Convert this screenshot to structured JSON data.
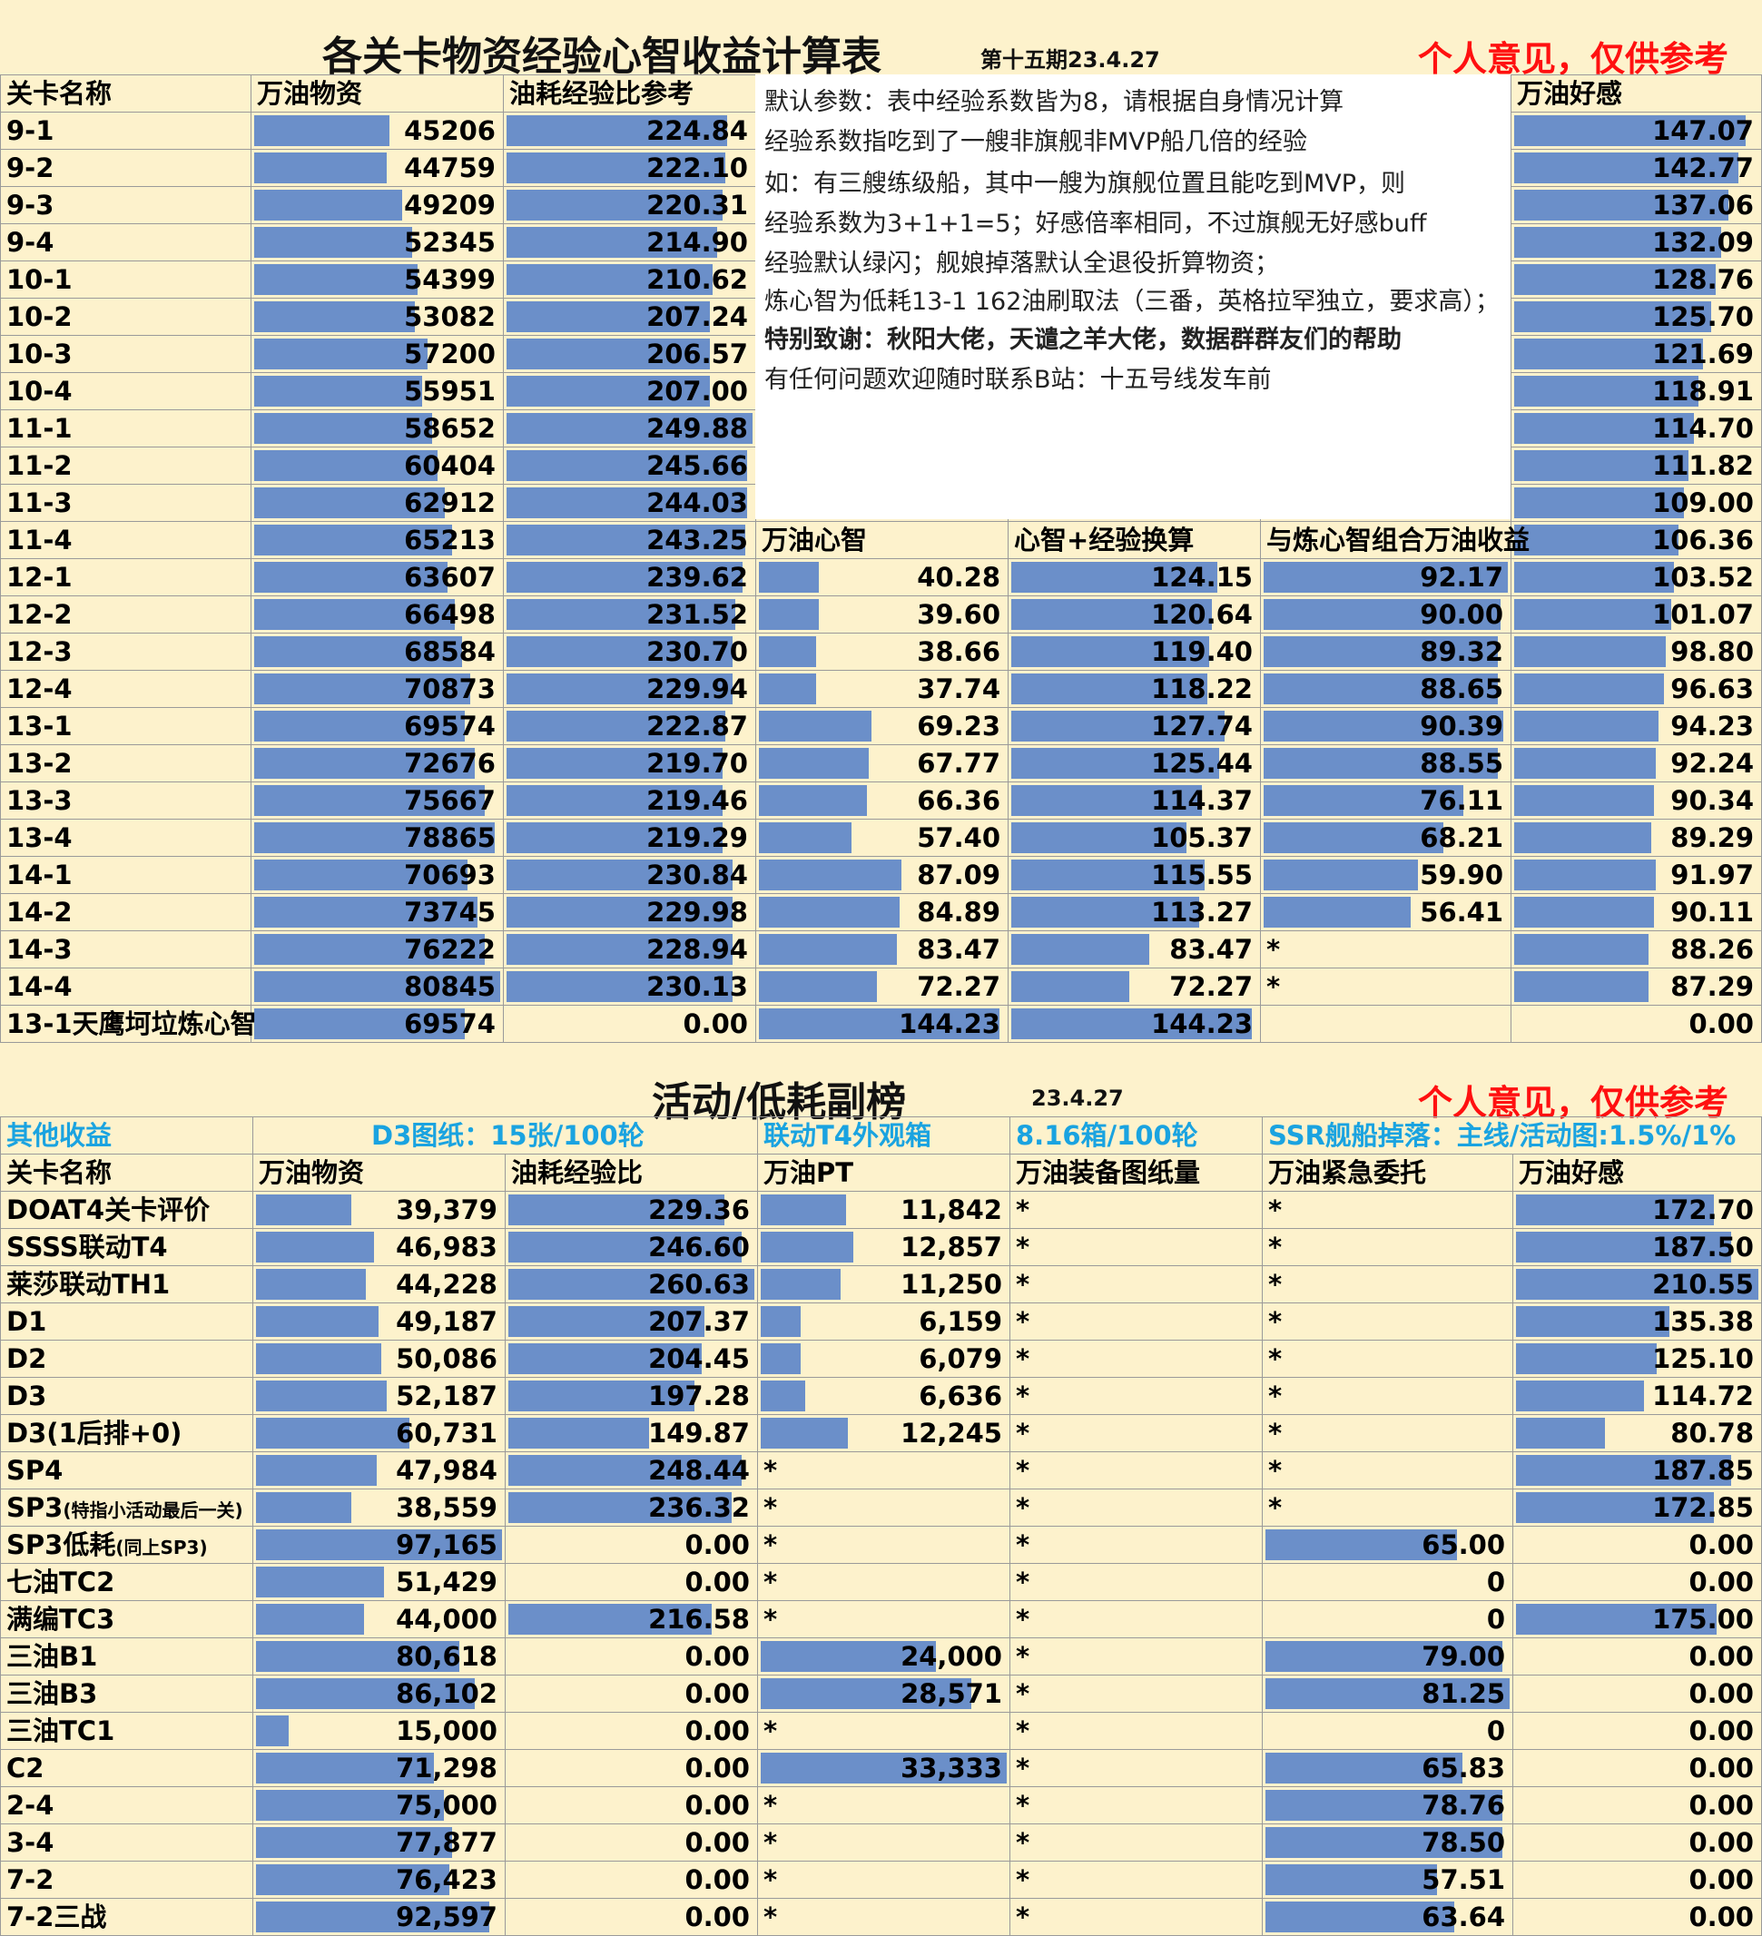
{
  "top": {
    "title": "各关卡物资经验心智收益计算表",
    "period": "第十五期23.4.27",
    "disclaimer": "个人意见，仅供参考",
    "headers": {
      "name": "关卡名称",
      "supply": "万油物资",
      "exp": "油耗经验比参考",
      "affinity": "万油好感",
      "mind": "万油心智",
      "mind_exp": "心智+经验换算",
      "combo": "与炼心智组合万油收益"
    },
    "rows": [
      {
        "name": "9-1",
        "supply": "45206",
        "exp": "224.84",
        "affinity": "147.07",
        "supply_pct": 0.56,
        "exp_pct": 0.9,
        "aff_pct": 0.95
      },
      {
        "name": "9-2",
        "supply": "44759",
        "exp": "222.10",
        "affinity": "142.77",
        "supply_pct": 0.55,
        "exp_pct": 0.89,
        "aff_pct": 0.92
      },
      {
        "name": "9-3",
        "supply": "49209",
        "exp": "220.31",
        "affinity": "137.06",
        "supply_pct": 0.61,
        "exp_pct": 0.88,
        "aff_pct": 0.88
      },
      {
        "name": "9-4",
        "supply": "52345",
        "exp": "214.90",
        "affinity": "132.09",
        "supply_pct": 0.65,
        "exp_pct": 0.86,
        "aff_pct": 0.85
      },
      {
        "name": "10-1",
        "supply": "54399",
        "exp": "210.62",
        "affinity": "128.76",
        "supply_pct": 0.67,
        "exp_pct": 0.84,
        "aff_pct": 0.83
      },
      {
        "name": "10-2",
        "supply": "53082",
        "exp": "207.24",
        "affinity": "125.70",
        "supply_pct": 0.66,
        "exp_pct": 0.83,
        "aff_pct": 0.81
      },
      {
        "name": "10-3",
        "supply": "57200",
        "exp": "206.57",
        "affinity": "121.69",
        "supply_pct": 0.71,
        "exp_pct": 0.83,
        "aff_pct": 0.78
      },
      {
        "name": "10-4",
        "supply": "55951",
        "exp": "207.00",
        "affinity": "118.91",
        "supply_pct": 0.69,
        "exp_pct": 0.83,
        "aff_pct": 0.76
      },
      {
        "name": "11-1",
        "supply": "58652",
        "exp": "249.88",
        "affinity": "114.70",
        "supply_pct": 0.73,
        "exp_pct": 1.0,
        "aff_pct": 0.74
      },
      {
        "name": "11-2",
        "supply": "60404",
        "exp": "245.66",
        "affinity": "111.82",
        "supply_pct": 0.75,
        "exp_pct": 0.98,
        "aff_pct": 0.72
      },
      {
        "name": "11-3",
        "supply": "62912",
        "exp": "244.03",
        "affinity": "109.00",
        "supply_pct": 0.78,
        "exp_pct": 0.98,
        "aff_pct": 0.7
      },
      {
        "name": "11-4",
        "supply": "65213",
        "exp": "243.25",
        "affinity": "106.36",
        "supply_pct": 0.81,
        "exp_pct": 0.97,
        "aff_pct": 0.68
      },
      {
        "name": "12-1",
        "supply": "63607",
        "exp": "239.62",
        "affinity": "103.52",
        "supply_pct": 0.79,
        "exp_pct": 0.96,
        "aff_pct": 0.66
      },
      {
        "name": "12-2",
        "supply": "66498",
        "exp": "231.52",
        "affinity": "101.07",
        "supply_pct": 0.82,
        "exp_pct": 0.93,
        "aff_pct": 0.65
      },
      {
        "name": "12-3",
        "supply": "68584",
        "exp": "230.70",
        "affinity": "98.80",
        "supply_pct": 0.85,
        "exp_pct": 0.92,
        "aff_pct": 0.63
      },
      {
        "name": "12-4",
        "supply": "70873",
        "exp": "229.94",
        "affinity": "96.63",
        "supply_pct": 0.88,
        "exp_pct": 0.92,
        "aff_pct": 0.62
      },
      {
        "name": "13-1",
        "supply": "69574",
        "exp": "222.87",
        "affinity": "94.23",
        "supply_pct": 0.86,
        "exp_pct": 0.89,
        "aff_pct": 0.6
      },
      {
        "name": "13-2",
        "supply": "72676",
        "exp": "219.70",
        "affinity": "92.24",
        "supply_pct": 0.9,
        "exp_pct": 0.88,
        "aff_pct": 0.59
      },
      {
        "name": "13-3",
        "supply": "75667",
        "exp": "219.46",
        "affinity": "90.34",
        "supply_pct": 0.94,
        "exp_pct": 0.88,
        "aff_pct": 0.58
      },
      {
        "name": "13-4",
        "supply": "78865",
        "exp": "219.29",
        "affinity": "89.29",
        "supply_pct": 0.98,
        "exp_pct": 0.88,
        "aff_pct": 0.57
      },
      {
        "name": "14-1",
        "supply": "70693",
        "exp": "230.84",
        "affinity": "91.97",
        "supply_pct": 0.87,
        "exp_pct": 0.92,
        "aff_pct": 0.59
      },
      {
        "name": "14-2",
        "supply": "73745",
        "exp": "229.98",
        "affinity": "90.11",
        "supply_pct": 0.91,
        "exp_pct": 0.92,
        "aff_pct": 0.58
      },
      {
        "name": "14-3",
        "supply": "76222",
        "exp": "228.94",
        "affinity": "88.26",
        "supply_pct": 0.94,
        "exp_pct": 0.92,
        "aff_pct": 0.56
      },
      {
        "name": "14-4",
        "supply": "80845",
        "exp": "230.13",
        "affinity": "87.29",
        "supply_pct": 1.0,
        "exp_pct": 0.92,
        "aff_pct": 0.56
      },
      {
        "name": "13-1天鹰坷垃炼心智",
        "supply": "69574",
        "exp": "0.00",
        "affinity": "0.00",
        "supply_pct": 0.86,
        "exp_pct": 0,
        "aff_pct": 0
      }
    ],
    "mind_rows": [
      {
        "mind": "40.28",
        "mind_exp": "124.15",
        "combo": "92.17",
        "m": 0.26,
        "me": 0.84,
        "c": 1.0
      },
      {
        "mind": "39.60",
        "mind_exp": "120.64",
        "combo": "90.00",
        "m": 0.26,
        "me": 0.82,
        "c": 0.97
      },
      {
        "mind": "38.66",
        "mind_exp": "119.40",
        "combo": "89.32",
        "m": 0.25,
        "me": 0.81,
        "c": 0.96
      },
      {
        "mind": "37.74",
        "mind_exp": "118.22",
        "combo": "88.65",
        "m": 0.25,
        "me": 0.8,
        "c": 0.96
      },
      {
        "mind": "69.23",
        "mind_exp": "127.74",
        "combo": "90.39",
        "m": 0.47,
        "me": 0.87,
        "c": 0.98
      },
      {
        "mind": "67.77",
        "mind_exp": "125.44",
        "combo": "88.55",
        "m": 0.46,
        "me": 0.85,
        "c": 0.96
      },
      {
        "mind": "66.36",
        "mind_exp": "114.37",
        "combo": "76.11",
        "m": 0.45,
        "me": 0.78,
        "c": 0.82
      },
      {
        "mind": "57.40",
        "mind_exp": "105.37",
        "combo": "68.21",
        "m": 0.39,
        "me": 0.72,
        "c": 0.74
      },
      {
        "mind": "87.09",
        "mind_exp": "115.55",
        "combo": "59.90",
        "m": 0.59,
        "me": 0.79,
        "c": 0.64
      },
      {
        "mind": "84.89",
        "mind_exp": "113.27",
        "combo": "56.41",
        "m": 0.58,
        "me": 0.77,
        "c": 0.61
      },
      {
        "mind": "83.47",
        "mind_exp": "83.47",
        "combo": "*",
        "m": 0.57,
        "me": 0.57,
        "c": 0
      },
      {
        "mind": "72.27",
        "mind_exp": "72.27",
        "combo": "*",
        "m": 0.49,
        "me": 0.49,
        "c": 0
      },
      {
        "mind": "144.23",
        "mind_exp": "144.23",
        "combo": "",
        "m": 0.98,
        "me": 0.98,
        "c": 0
      }
    ],
    "note": [
      "默认参数：表中经验系数皆为8，请根据自身情况计算",
      "经验系数指吃到了一艘非旗舰非MVP船几倍的经验",
      "如：有三艘练级船，其中一艘为旗舰位置且能吃到MVP，则",
      "经验系数为3+1+1=5；好感倍率相同，不过旗舰无好感buff",
      "经验默认绿闪；舰娘掉落默认全退役折算物资；",
      "炼心智为低耗13-1 162油刷取法（三番，英格拉罕独立，要求高）；",
      "特别致谢：秋阳大佬，天谴之羊大佬，数据群群友们的帮助",
      "有任何问题欢迎随时联系B站：十五号线发车前"
    ]
  },
  "bottom": {
    "title": "活动/低耗副榜",
    "date": "23.4.27",
    "disclaimer": "个人意见，仅供参考",
    "info": [
      "其他收益",
      "D3图纸：15张/100轮",
      "联动T4外观箱",
      "8.16箱/100轮",
      "SSR舰船掉落：主线/活动图:1.5%/1%"
    ],
    "headers": [
      "关卡名称",
      "万油物资",
      "油耗经验比",
      "万油PT",
      "万油装备图纸量",
      "万油紧急委托",
      "万油好感"
    ],
    "rows": [
      {
        "name": "DOAT4关卡评价",
        "small": "",
        "supply": "39,379",
        "exp": "229.36",
        "pt": "11,842",
        "blueprint": "*",
        "commission": "*",
        "affinity": "172.70",
        "s": 0.4,
        "e": 0.88,
        "p": 0.36,
        "c": 0,
        "a": 0.82
      },
      {
        "name": "SSSS联动T4",
        "small": "",
        "supply": "46,983",
        "exp": "246.60",
        "pt": "12,857",
        "blueprint": "*",
        "commission": "*",
        "affinity": "187.50",
        "s": 0.49,
        "e": 0.95,
        "p": 0.39,
        "c": 0,
        "a": 0.89
      },
      {
        "name": "莱莎联动TH1",
        "small": "",
        "supply": "44,228",
        "exp": "260.63",
        "pt": "11,250",
        "blueprint": "*",
        "commission": "*",
        "affinity": "210.55",
        "s": 0.46,
        "e": 1.0,
        "p": 0.34,
        "c": 0,
        "a": 1.0
      },
      {
        "name": "D1",
        "small": "",
        "supply": "49,187",
        "exp": "207.37",
        "pt": "6,159",
        "blueprint": "*",
        "commission": "*",
        "affinity": "135.38",
        "s": 0.51,
        "e": 0.8,
        "p": 0.18,
        "c": 0,
        "a": 0.64
      },
      {
        "name": "D2",
        "small": "",
        "supply": "50,086",
        "exp": "204.45",
        "pt": "6,079",
        "blueprint": "*",
        "commission": "*",
        "affinity": "125.10",
        "s": 0.52,
        "e": 0.79,
        "p": 0.18,
        "c": 0,
        "a": 0.59
      },
      {
        "name": "D3",
        "small": "",
        "supply": "52,187",
        "exp": "197.28",
        "pt": "6,636",
        "blueprint": "*",
        "commission": "*",
        "affinity": "114.72",
        "s": 0.54,
        "e": 0.76,
        "p": 0.2,
        "c": 0,
        "a": 0.54
      },
      {
        "name": "D3(1后排+0)",
        "small": "",
        "supply": "60,731",
        "exp": "149.87",
        "pt": "12,245",
        "blueprint": "*",
        "commission": "*",
        "affinity": "80.78",
        "s": 0.63,
        "e": 0.58,
        "p": 0.37,
        "c": 0,
        "a": 0.38
      },
      {
        "name": "SP4",
        "small": "",
        "supply": "47,984",
        "exp": "248.44",
        "pt": "*",
        "blueprint": "*",
        "commission": "*",
        "affinity": "187.85",
        "s": 0.5,
        "e": 0.95,
        "p": 0,
        "c": 0,
        "a": 0.89
      },
      {
        "name": "SP3",
        "small": "(特指小活动最后一关)",
        "supply": "38,559",
        "exp": "236.32",
        "pt": "*",
        "blueprint": "*",
        "commission": "*",
        "affinity": "172.85",
        "s": 0.4,
        "e": 0.91,
        "p": 0,
        "c": 0,
        "a": 0.82
      },
      {
        "name": "SP3低耗",
        "small": "(同上SP3)",
        "supply": "97,165",
        "exp": "0.00",
        "pt": "*",
        "blueprint": "*",
        "commission": "65.00",
        "affinity": "0.00",
        "s": 1.0,
        "e": 0,
        "p": 0,
        "c": 0.79,
        "a": 0
      },
      {
        "name": "七油TC2",
        "small": "",
        "supply": "51,429",
        "exp": "0.00",
        "pt": "*",
        "blueprint": "*",
        "commission": "0",
        "affinity": "0.00",
        "s": 0.53,
        "e": 0,
        "p": 0,
        "c": 0,
        "a": 0
      },
      {
        "name": "满编TC3",
        "small": "",
        "supply": "44,000",
        "exp": "216.58",
        "pt": "*",
        "blueprint": "*",
        "commission": "0",
        "affinity": "175.00",
        "s": 0.45,
        "e": 0.83,
        "p": 0,
        "c": 0,
        "a": 0.83
      },
      {
        "name": "三油B1",
        "small": "",
        "supply": "80,618",
        "exp": "0.00",
        "pt": "24,000",
        "blueprint": "*",
        "commission": "79.00",
        "affinity": "0.00",
        "s": 0.83,
        "e": 0,
        "p": 0.72,
        "c": 0.97,
        "a": 0
      },
      {
        "name": "三油B3",
        "small": "",
        "supply": "86,102",
        "exp": "0.00",
        "pt": "28,571",
        "blueprint": "*",
        "commission": "81.25",
        "affinity": "0.00",
        "s": 0.89,
        "e": 0,
        "p": 0.86,
        "c": 1.0,
        "a": 0
      },
      {
        "name": "三油TC1",
        "small": "",
        "supply": "15,000",
        "exp": "0.00",
        "pt": "*",
        "blueprint": "*",
        "commission": "0",
        "affinity": "0.00",
        "s": 0.15,
        "e": 0,
        "p": 0,
        "c": 0,
        "a": 0
      },
      {
        "name": "C2",
        "small": "",
        "supply": "71,298",
        "exp": "0.00",
        "pt": "33,333",
        "blueprint": "*",
        "commission": "65.83",
        "affinity": "0.00",
        "s": 0.73,
        "e": 0,
        "p": 1.0,
        "c": 0.81,
        "a": 0
      },
      {
        "name": "2-4",
        "small": "",
        "supply": "75,000",
        "exp": "0.00",
        "pt": "*",
        "blueprint": "*",
        "commission": "78.76",
        "affinity": "0.00",
        "s": 0.77,
        "e": 0,
        "p": 0,
        "c": 0.97,
        "a": 0
      },
      {
        "name": "3-4",
        "small": "",
        "supply": "77,877",
        "exp": "0.00",
        "pt": "*",
        "blueprint": "*",
        "commission": "78.50",
        "affinity": "0.00",
        "s": 0.8,
        "e": 0,
        "p": 0,
        "c": 0.97,
        "a": 0
      },
      {
        "name": "7-2",
        "small": "",
        "supply": "76,423",
        "exp": "0.00",
        "pt": "*",
        "blueprint": "*",
        "commission": "57.51",
        "affinity": "0.00",
        "s": 0.79,
        "e": 0,
        "p": 0,
        "c": 0.71,
        "a": 0
      },
      {
        "name": "7-2三战",
        "small": "",
        "supply": "92,597",
        "exp": "0.00",
        "pt": "*",
        "blueprint": "*",
        "commission": "63.64",
        "affinity": "0.00",
        "s": 0.95,
        "e": 0,
        "p": 0,
        "c": 0.78,
        "a": 0
      }
    ]
  }
}
